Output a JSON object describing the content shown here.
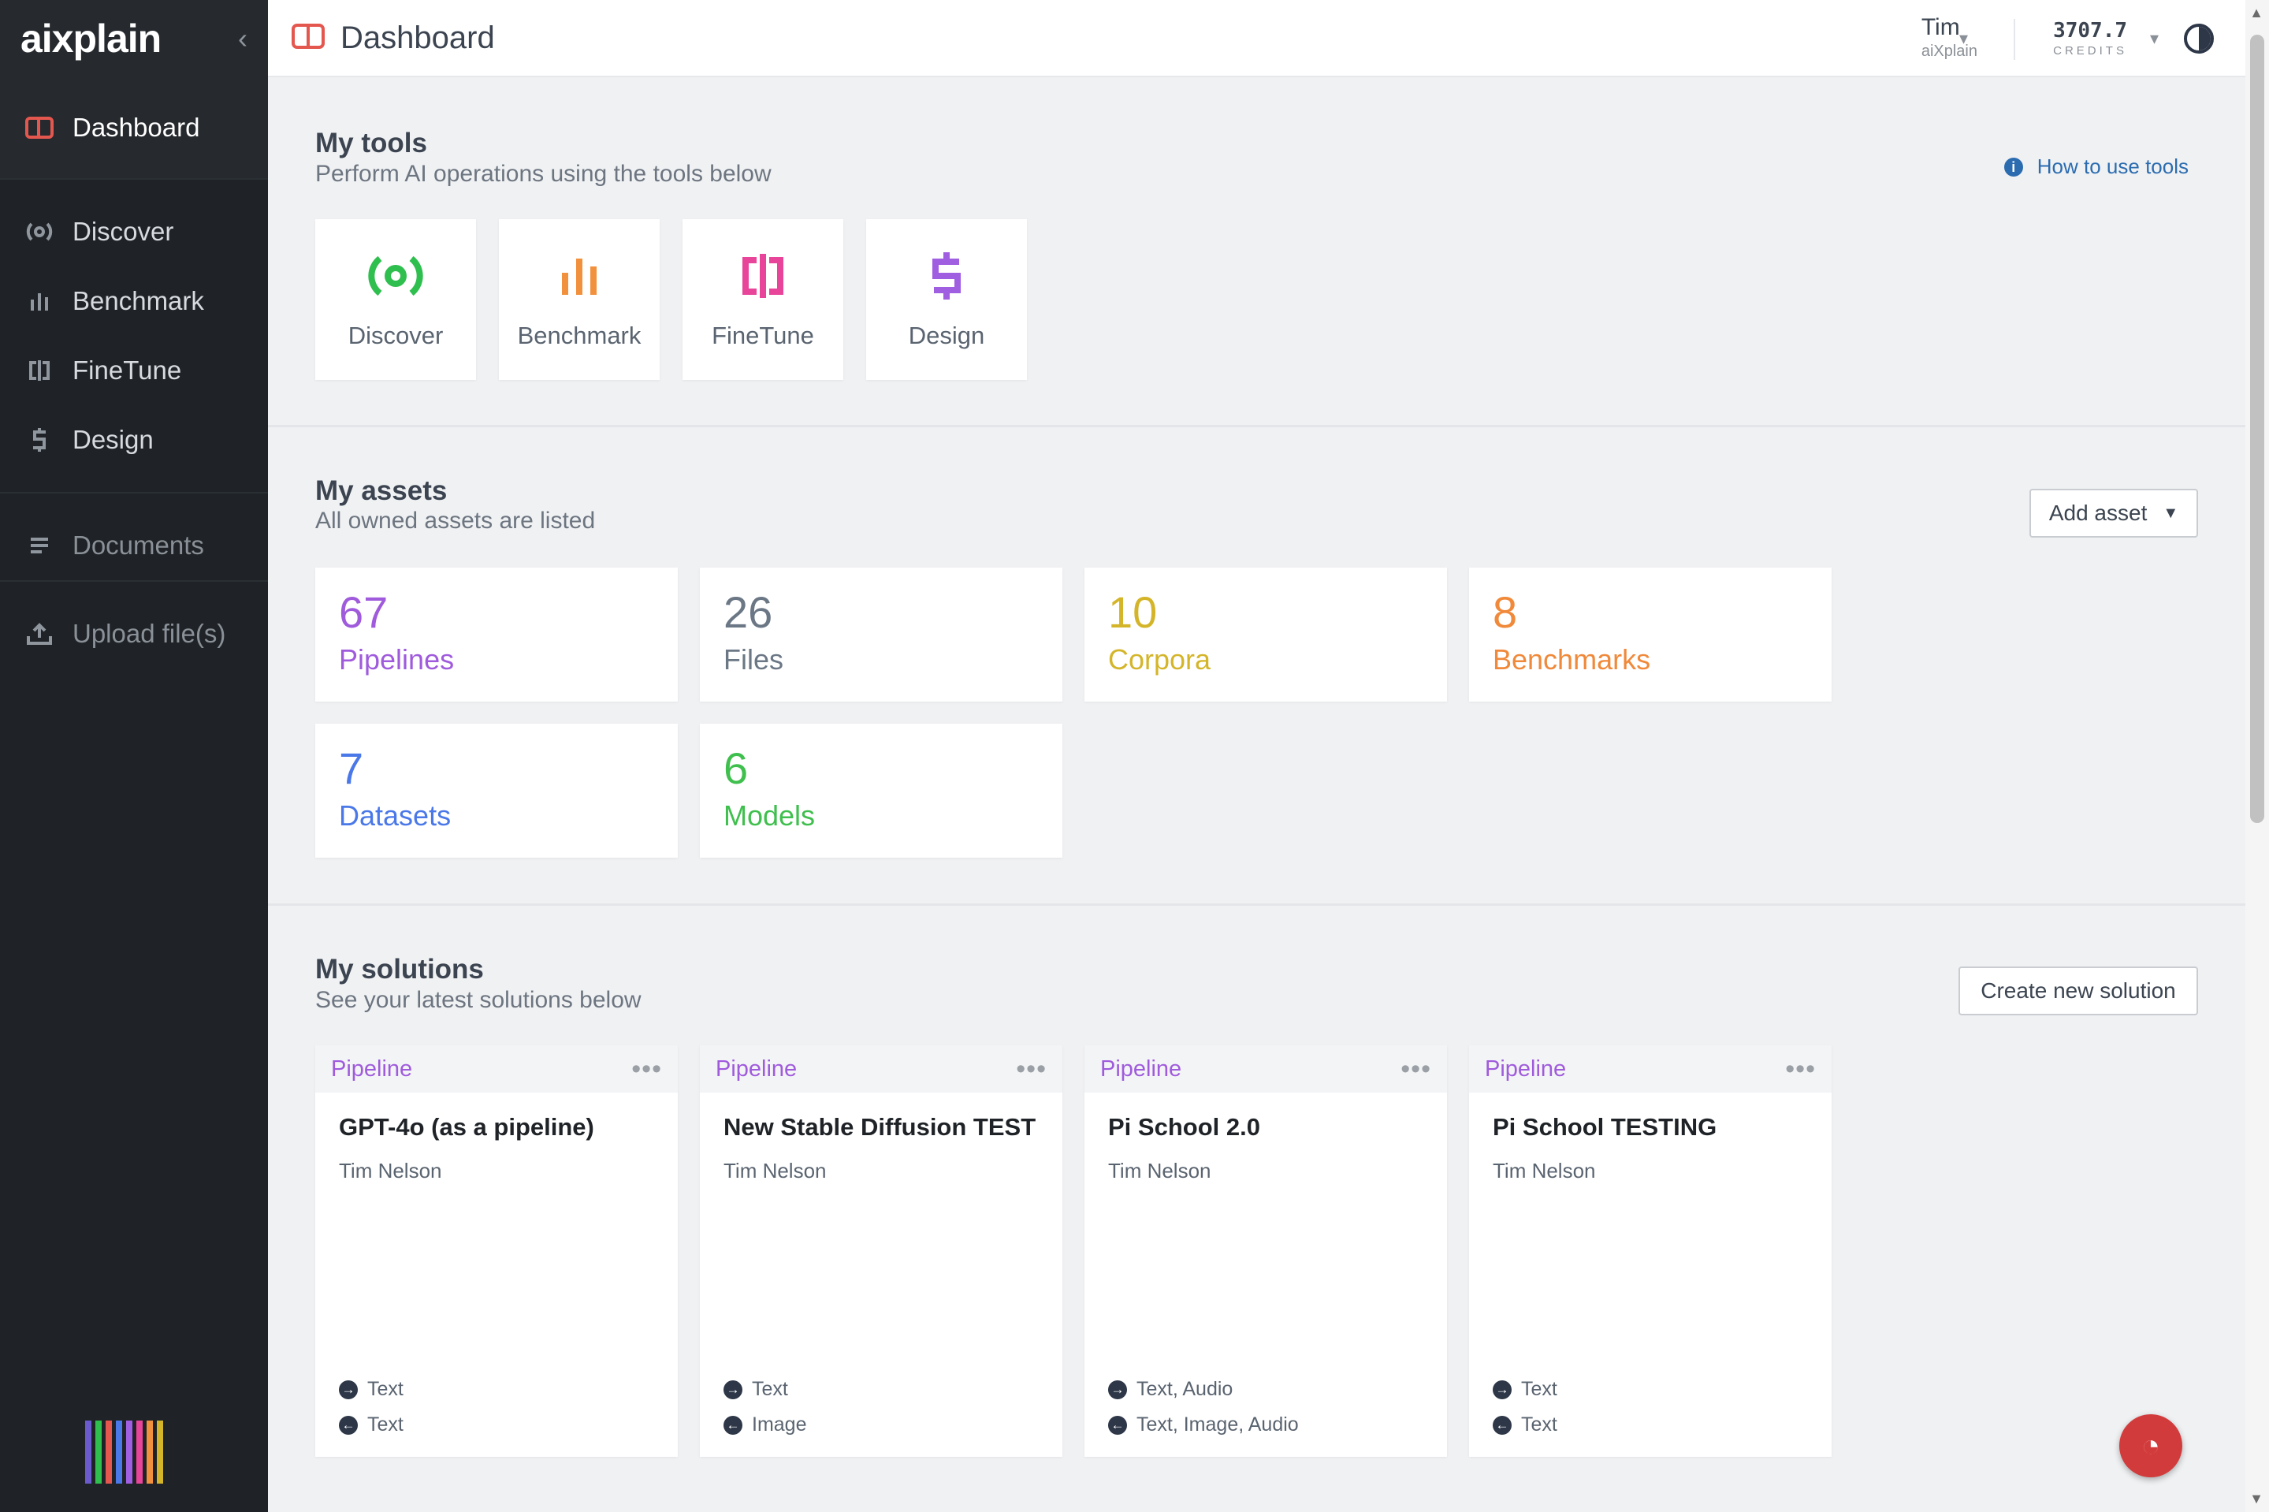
{
  "brand": {
    "logo_text": "aixplain"
  },
  "sidebar": {
    "items": [
      {
        "label": "Dashboard",
        "icon": "dashboard-icon"
      },
      {
        "label": "Discover",
        "icon": "discover-icon"
      },
      {
        "label": "Benchmark",
        "icon": "benchmark-icon"
      },
      {
        "label": "FineTune",
        "icon": "finetune-icon"
      },
      {
        "label": "Design",
        "icon": "design-icon"
      },
      {
        "label": "Documents",
        "icon": "documents-icon"
      },
      {
        "label": "Upload file(s)",
        "icon": "upload-icon"
      }
    ]
  },
  "header": {
    "title": "Dashboard",
    "user_name": "Tim",
    "user_org": "aiXplain",
    "credits_value": "3707.7",
    "credits_label": "CREDITS"
  },
  "tools": {
    "title": "My tools",
    "subtitle": "Perform AI operations using the tools below",
    "help_link": "How to use tools",
    "items": [
      {
        "label": "Discover",
        "color": "#2fbf4f"
      },
      {
        "label": "Benchmark",
        "color": "#f2913d"
      },
      {
        "label": "FineTune",
        "color": "#e8449a"
      },
      {
        "label": "Design",
        "color": "#a05ee0"
      }
    ]
  },
  "assets": {
    "title": "My assets",
    "subtitle": "All owned assets are listed",
    "add_button": "Add asset",
    "items": [
      {
        "count": "67",
        "label": "Pipelines",
        "color": "#9f5bdc"
      },
      {
        "count": "26",
        "label": "Files",
        "color": "#6b7785"
      },
      {
        "count": "10",
        "label": "Corpora",
        "color": "#d4b52a"
      },
      {
        "count": "8",
        "label": "Benchmarks",
        "color": "#f0893a"
      },
      {
        "count": "7",
        "label": "Datasets",
        "color": "#4a78e8"
      },
      {
        "count": "6",
        "label": "Models",
        "color": "#3fbf4d"
      }
    ]
  },
  "solutions": {
    "title": "My solutions",
    "subtitle": "See your latest solutions below",
    "create_button": "Create new solution",
    "items": [
      {
        "type": "Pipeline",
        "title": "GPT-4o (as a pipeline)",
        "owner": "Tim Nelson",
        "input": "Text",
        "output": "Text"
      },
      {
        "type": "Pipeline",
        "title": "New Stable Diffusion TEST",
        "owner": "Tim Nelson",
        "input": "Text",
        "output": "Image"
      },
      {
        "type": "Pipeline",
        "title": "Pi School 2.0",
        "owner": "Tim Nelson",
        "input": "Text, Audio",
        "output": "Text, Image, Audio"
      },
      {
        "type": "Pipeline",
        "title": "Pi School TESTING",
        "owner": "Tim Nelson",
        "input": "Text",
        "output": "Text"
      }
    ]
  }
}
